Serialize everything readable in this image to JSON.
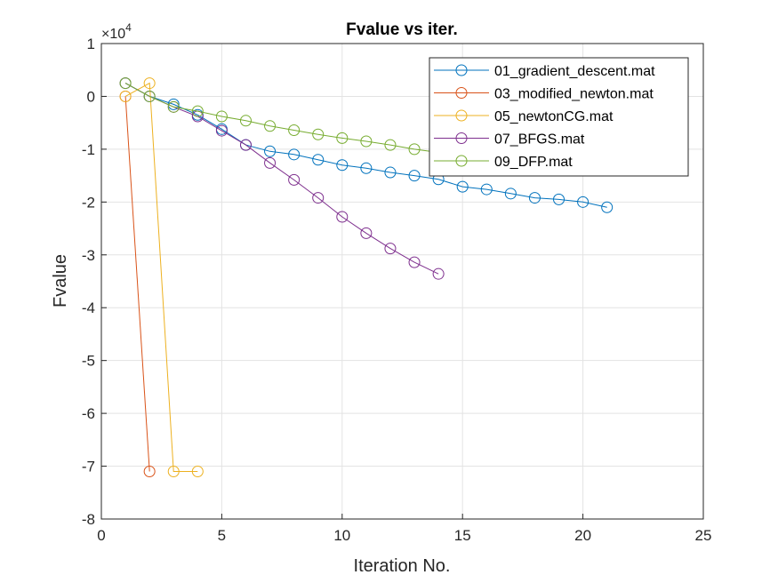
{
  "chart_data": {
    "type": "line",
    "title": "Fvalue vs iter.",
    "xlabel": "Iteration No.",
    "ylabel": "Fvalue",
    "y_exponent_label": "×10",
    "y_exponent_power": "4",
    "y_exponent": 4,
    "xlim": [
      0,
      25
    ],
    "ylim": [
      -80000,
      10000
    ],
    "x_ticks": [
      0,
      5,
      10,
      15,
      20,
      25
    ],
    "x_tick_labels": [
      "0",
      "5",
      "10",
      "15",
      "20",
      "25"
    ],
    "y_ticks": [
      10000,
      0,
      -10000,
      -20000,
      -30000,
      -40000,
      -50000,
      -60000,
      -70000,
      -80000
    ],
    "y_tick_labels": [
      "1",
      "0",
      "-1",
      "-2",
      "-3",
      "-4",
      "-5",
      "-6",
      "-7",
      "-8"
    ],
    "grid": true,
    "legend_position": "top-right",
    "marker": "circle",
    "series": [
      {
        "name": "01_gradient_descent.mat",
        "color": "#0072BD",
        "x": [
          1,
          2,
          3,
          4,
          5,
          6,
          7,
          8,
          9,
          10,
          11,
          12,
          13,
          14,
          15,
          16,
          17,
          18,
          19,
          20,
          21
        ],
        "y": [
          2500,
          0,
          -1500,
          -3500,
          -6200,
          -9200,
          -10400,
          -11000,
          -12000,
          -13000,
          -13600,
          -14400,
          -15000,
          -15700,
          -17100,
          -17600,
          -18400,
          -19200,
          -19500,
          -20000,
          -21000
        ]
      },
      {
        "name": "03_modified_newton.mat",
        "color": "#D95319",
        "x": [
          1,
          2
        ],
        "y": [
          0,
          -71000
        ]
      },
      {
        "name": "05_newtonCG.mat",
        "color": "#EDB120",
        "x": [
          1,
          2,
          3,
          4
        ],
        "y": [
          0,
          2500,
          -71000,
          -71000
        ]
      },
      {
        "name": "07_BFGS.mat",
        "color": "#7E2F8E",
        "x": [
          1,
          2,
          3,
          4,
          5,
          6,
          7,
          8,
          9,
          10,
          11,
          12,
          13,
          14
        ],
        "y": [
          2500,
          0,
          -2000,
          -3800,
          -6500,
          -9200,
          -12600,
          -15800,
          -19200,
          -22800,
          -25900,
          -28800,
          -31400,
          -33600
        ]
      },
      {
        "name": "09_DFP.mat",
        "color": "#77AC30",
        "x": [
          1,
          2,
          3,
          4,
          5,
          6,
          7,
          8,
          9,
          10,
          11,
          12,
          13,
          14,
          15
        ],
        "y": [
          2500,
          0,
          -2000,
          -2800,
          -3800,
          -4600,
          -5600,
          -6400,
          -7200,
          -7900,
          -8500,
          -9200,
          -10000,
          -10600,
          -11200
        ]
      }
    ]
  }
}
